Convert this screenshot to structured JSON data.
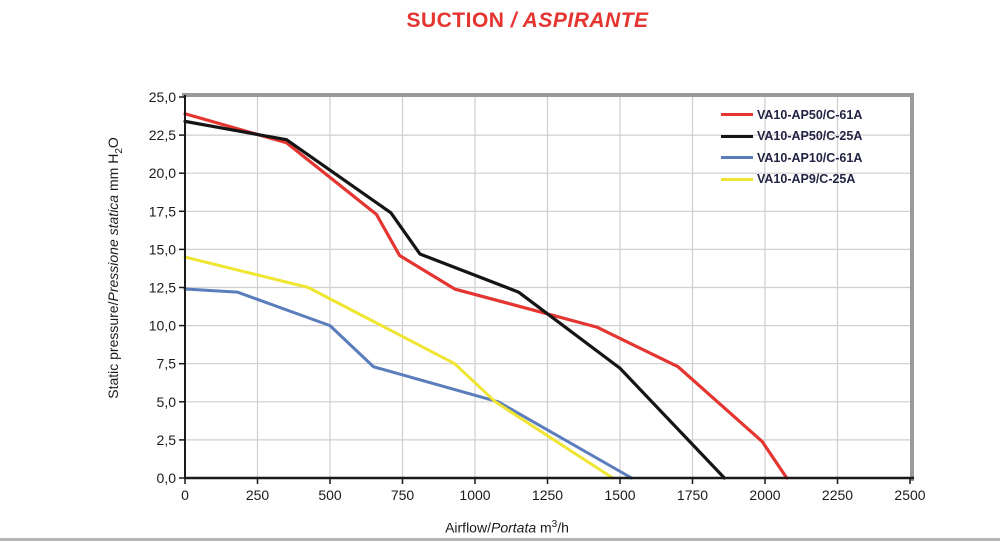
{
  "title": {
    "part1": "SUCTION ",
    "part2": "/ ASPIRANTE"
  },
  "colors": {
    "title_red": "#e43530",
    "grid": "#cfcfcf",
    "frame_gray": "#9a9a9a",
    "axis_black": "#1a1a1a",
    "tick_text": "#1b1b1b",
    "legend_text": "#232343"
  },
  "axis_labels": {
    "x": {
      "plain": "Airflow/",
      "italic": "Portata",
      "unit_pre": " m",
      "unit_sup": "3",
      "unit_post": "/h"
    },
    "y": {
      "plain": "Static pressure/",
      "italic": "Pressione statica",
      "unit_pre": " mm  H",
      "unit_sub": "2",
      "unit_post": "O"
    }
  },
  "chart_data": {
    "type": "line",
    "title": "SUCTION / ASPIRANTE",
    "xlabel": "Airflow/Portata m3/h",
    "ylabel": "Static pressure/Pressione statica mm H2O",
    "xlim": [
      0,
      2500
    ],
    "ylim": [
      0,
      25
    ],
    "grid": true,
    "legend_position": "top-right",
    "xticks": [
      0,
      250,
      500,
      750,
      1000,
      1250,
      1500,
      1750,
      2000,
      2250,
      2500
    ],
    "xtick_labels": [
      "0",
      "250",
      "500",
      "750",
      "1000",
      "1250",
      "1500",
      "1750",
      "2000",
      "2250",
      "2500"
    ],
    "yticks": [
      0,
      2.5,
      5,
      7.5,
      10,
      12.5,
      15,
      17.5,
      20,
      22.5,
      25
    ],
    "ytick_labels": [
      "0,0",
      "2,5",
      "5,0",
      "7,5",
      "10,0",
      "12,5",
      "15,0",
      "17,5",
      "20,0",
      "22,5",
      "25,0"
    ],
    "series": [
      {
        "name": "VA10-AP50/C-61A",
        "color": "#e43530",
        "width": 3.2,
        "points": [
          [
            0,
            23.9
          ],
          [
            350,
            22.0
          ],
          [
            660,
            17.3
          ],
          [
            740,
            14.6
          ],
          [
            930,
            12.4
          ],
          [
            1420,
            9.9
          ],
          [
            1700,
            7.3
          ],
          [
            1990,
            2.4
          ],
          [
            2075,
            0
          ]
        ]
      },
      {
        "name": "VA10-AP50/C-25A",
        "color": "#151515",
        "width": 3.2,
        "points": [
          [
            0,
            23.4
          ],
          [
            350,
            22.2
          ],
          [
            710,
            17.4
          ],
          [
            810,
            14.7
          ],
          [
            1150,
            12.2
          ],
          [
            1500,
            7.2
          ],
          [
            1860,
            0
          ]
        ]
      },
      {
        "name": "VA10-AP10/C-61A",
        "color": "#5a7dbb",
        "width": 3.0,
        "points": [
          [
            0,
            12.4
          ],
          [
            180,
            12.2
          ],
          [
            500,
            10.0
          ],
          [
            650,
            7.3
          ],
          [
            1080,
            5.0
          ],
          [
            1540,
            0
          ]
        ]
      },
      {
        "name": "VA10-AP9/C-25A",
        "color": "#efe532",
        "width": 3.0,
        "points": [
          [
            0,
            14.5
          ],
          [
            425,
            12.5
          ],
          [
            930,
            7.5
          ],
          [
            1070,
            5.0
          ],
          [
            1475,
            0
          ]
        ]
      }
    ]
  }
}
